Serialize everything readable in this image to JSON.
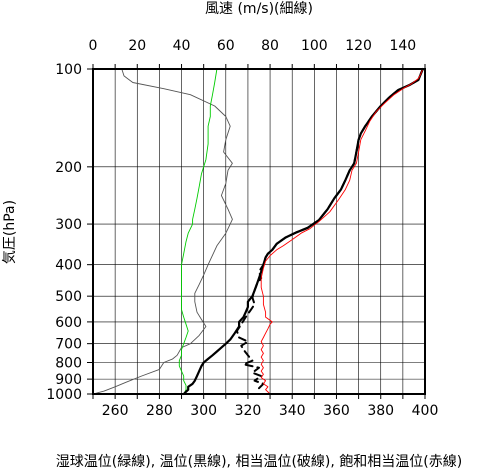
{
  "chart_data": {
    "type": "line",
    "xlabel_top": "風速 (m/s)(細線)",
    "xlabel_bottom": "湿球温位(緑線), 温位(黒線), 相当温位(破線), 飽和相当温位(赤線)",
    "ylabel": "気圧(hPa)",
    "y_scale": "log",
    "y_inverted": true,
    "ylim": [
      1000,
      100
    ],
    "xlim_bottom": [
      250,
      400
    ],
    "xlim_top": [
      0,
      150
    ],
    "grid": true,
    "top_ticks": [
      0,
      20,
      40,
      60,
      80,
      100,
      120,
      140
    ],
    "bottom_ticks": [
      260,
      280,
      300,
      320,
      340,
      360,
      380,
      400
    ],
    "y_ticks": [
      100,
      200,
      300,
      400,
      500,
      600,
      700,
      800,
      900,
      1000
    ],
    "series": [
      {
        "key": "wind_speed",
        "axis": "top",
        "color": "#555555",
        "style": "thin",
        "points": [
          [
            0,
            1000
          ],
          [
            5,
            980
          ],
          [
            10,
            950
          ],
          [
            15,
            920
          ],
          [
            22,
            880
          ],
          [
            30,
            840
          ],
          [
            32,
            800
          ],
          [
            36,
            780
          ],
          [
            38,
            760
          ],
          [
            40,
            720
          ],
          [
            44,
            700
          ],
          [
            48,
            660
          ],
          [
            51,
            620
          ],
          [
            49,
            590
          ],
          [
            47,
            560
          ],
          [
            46,
            520
          ],
          [
            46,
            490
          ],
          [
            48,
            460
          ],
          [
            50,
            430
          ],
          [
            52,
            400
          ],
          [
            56,
            350
          ],
          [
            60,
            320
          ],
          [
            62,
            300
          ],
          [
            63,
            290
          ],
          [
            61,
            270
          ],
          [
            58,
            245
          ],
          [
            60,
            225
          ],
          [
            61,
            205
          ],
          [
            63,
            195
          ],
          [
            59,
            180
          ],
          [
            60,
            165
          ],
          [
            62,
            150
          ],
          [
            60,
            140
          ],
          [
            55,
            130
          ],
          [
            44,
            120
          ],
          [
            32,
            115
          ],
          [
            18,
            110
          ],
          [
            14,
            105
          ],
          [
            13,
            100
          ]
        ]
      },
      {
        "key": "wet_bulb_potential_temperature",
        "axis": "bottom",
        "color": "#00cc00",
        "style": "thin",
        "points": [
          [
            291,
            1000
          ],
          [
            292,
            970
          ],
          [
            292,
            940
          ],
          [
            291,
            910
          ],
          [
            291,
            880
          ],
          [
            290,
            850
          ],
          [
            289,
            820
          ],
          [
            289,
            790
          ],
          [
            290,
            760
          ],
          [
            290,
            730
          ],
          [
            291,
            700
          ],
          [
            292,
            670
          ],
          [
            293,
            640
          ],
          [
            292,
            610
          ],
          [
            291,
            580
          ],
          [
            290,
            550
          ],
          [
            290,
            520
          ],
          [
            290,
            490
          ],
          [
            290,
            460
          ],
          [
            290,
            430
          ],
          [
            290,
            400
          ],
          [
            291,
            370
          ],
          [
            292,
            340
          ],
          [
            293,
            320
          ],
          [
            295,
            300
          ],
          [
            295,
            290
          ],
          [
            296,
            270
          ],
          [
            297,
            250
          ],
          [
            298,
            230
          ],
          [
            299,
            210
          ],
          [
            301,
            190
          ],
          [
            302,
            170
          ],
          [
            302,
            160
          ],
          [
            302,
            150
          ],
          [
            303,
            140
          ],
          [
            303,
            130
          ],
          [
            304,
            120
          ],
          [
            305,
            110
          ],
          [
            306,
            100
          ]
        ]
      },
      {
        "key": "potential_temperature",
        "axis": "bottom",
        "color": "#000000",
        "style": "thick",
        "points": [
          [
            291,
            1000
          ],
          [
            293,
            970
          ],
          [
            293,
            950
          ],
          [
            295,
            930
          ],
          [
            296,
            910
          ],
          [
            297,
            880
          ],
          [
            298,
            850
          ],
          [
            299,
            820
          ],
          [
            300,
            800
          ],
          [
            302,
            780
          ],
          [
            304,
            760
          ],
          [
            306,
            740
          ],
          [
            308,
            720
          ],
          [
            310,
            700
          ],
          [
            312,
            680
          ],
          [
            314,
            650
          ],
          [
            316,
            620
          ],
          [
            316,
            600
          ],
          [
            318,
            580
          ],
          [
            319,
            560
          ],
          [
            320,
            540
          ],
          [
            320,
            520
          ],
          [
            322,
            500
          ],
          [
            323,
            480
          ],
          [
            324,
            460
          ],
          [
            325,
            440
          ],
          [
            326,
            420
          ],
          [
            327,
            400
          ],
          [
            328,
            380
          ],
          [
            329,
            370
          ],
          [
            331,
            360
          ],
          [
            333,
            345
          ],
          [
            337,
            330
          ],
          [
            342,
            318
          ],
          [
            347,
            308
          ],
          [
            352,
            292
          ],
          [
            356,
            270
          ],
          [
            359,
            250
          ],
          [
            362,
            235
          ],
          [
            364,
            220
          ],
          [
            366,
            205
          ],
          [
            368,
            195
          ],
          [
            369,
            180
          ],
          [
            370,
            165
          ],
          [
            371,
            158
          ],
          [
            373,
            150
          ],
          [
            376,
            140
          ],
          [
            380,
            130
          ],
          [
            384,
            122
          ],
          [
            388,
            116
          ],
          [
            393,
            112
          ],
          [
            397,
            108
          ],
          [
            398,
            104
          ],
          [
            399,
            100
          ]
        ]
      },
      {
        "key": "equivalent_potential_temperature",
        "axis": "bottom",
        "color": "#000000",
        "style": "dashed",
        "points": [
          [
            325,
            960
          ],
          [
            327,
            930
          ],
          [
            323,
            910
          ],
          [
            326,
            880
          ],
          [
            322,
            860
          ],
          [
            325,
            830
          ],
          [
            318,
            810
          ],
          [
            322,
            790
          ],
          [
            320,
            760
          ],
          [
            318,
            730
          ],
          [
            317,
            710
          ],
          [
            320,
            690
          ],
          [
            316,
            670
          ],
          [
            315,
            640
          ],
          [
            317,
            610
          ],
          [
            319,
            580
          ],
          [
            321,
            555
          ],
          [
            323,
            530
          ],
          [
            322,
            505
          ],
          [
            323,
            480
          ],
          [
            324,
            460
          ],
          [
            326,
            440
          ],
          [
            325,
            420
          ],
          [
            326,
            410
          ],
          [
            327,
            400
          ],
          [
            328,
            380
          ],
          [
            329,
            370
          ],
          [
            331,
            360
          ],
          [
            333,
            345
          ],
          [
            337,
            330
          ],
          [
            342,
            318
          ],
          [
            347,
            308
          ],
          [
            352,
            292
          ],
          [
            356,
            270
          ],
          [
            359,
            250
          ],
          [
            362,
            235
          ],
          [
            364,
            220
          ],
          [
            366,
            205
          ],
          [
            368,
            195
          ],
          [
            369,
            180
          ],
          [
            370,
            165
          ],
          [
            371,
            158
          ],
          [
            373,
            150
          ],
          [
            376,
            140
          ],
          [
            380,
            130
          ],
          [
            384,
            122
          ],
          [
            388,
            116
          ],
          [
            393,
            112
          ],
          [
            397,
            108
          ],
          [
            398,
            104
          ],
          [
            399,
            100
          ]
        ]
      },
      {
        "key": "saturated_equivalent_potential_temperature",
        "axis": "bottom",
        "color": "#ff0000",
        "style": "thin",
        "points": [
          [
            330,
            1000
          ],
          [
            328,
            970
          ],
          [
            329,
            950
          ],
          [
            327,
            930
          ],
          [
            328,
            910
          ],
          [
            326,
            890
          ],
          [
            327,
            870
          ],
          [
            326,
            850
          ],
          [
            327,
            830
          ],
          [
            326,
            810
          ],
          [
            327,
            790
          ],
          [
            326,
            770
          ],
          [
            327,
            750
          ],
          [
            326,
            730
          ],
          [
            327,
            710
          ],
          [
            326,
            690
          ],
          [
            327,
            670
          ],
          [
            328,
            650
          ],
          [
            329,
            630
          ],
          [
            330,
            610
          ],
          [
            331,
            600
          ],
          [
            328,
            580
          ],
          [
            328,
            560
          ],
          [
            327,
            530
          ],
          [
            327,
            500
          ],
          [
            326,
            470
          ],
          [
            326,
            440
          ],
          [
            327,
            410
          ],
          [
            328,
            390
          ],
          [
            330,
            375
          ],
          [
            333,
            360
          ],
          [
            336,
            350
          ],
          [
            340,
            335
          ],
          [
            344,
            320
          ],
          [
            348,
            310
          ],
          [
            352,
            295
          ],
          [
            357,
            275
          ],
          [
            361,
            252
          ],
          [
            364,
            235
          ],
          [
            366,
            220
          ],
          [
            367,
            205
          ],
          [
            369,
            195
          ],
          [
            370,
            180
          ],
          [
            371,
            165
          ],
          [
            373,
            155
          ],
          [
            375,
            145
          ],
          [
            378,
            135
          ],
          [
            382,
            127
          ],
          [
            386,
            120
          ],
          [
            390,
            115
          ],
          [
            394,
            111
          ],
          [
            397,
            107
          ],
          [
            398,
            104
          ],
          [
            399,
            100
          ]
        ]
      }
    ]
  }
}
